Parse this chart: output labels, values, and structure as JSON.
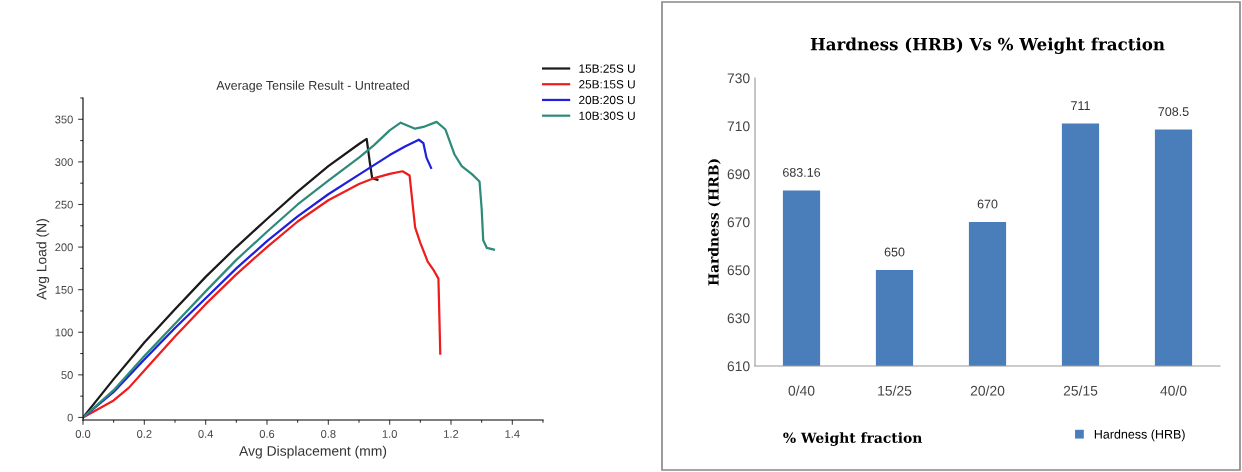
{
  "chart_data": [
    {
      "type": "line",
      "title": "Average Tensile Result - Untreated",
      "xlabel": "Avg Displacement (mm)",
      "ylabel": "Avg Load (N)",
      "xlim": [
        0,
        1.5
      ],
      "xticks": [
        {
          "value": 0,
          "label": "0.0"
        },
        0.2,
        0.4,
        0.6,
        0.8,
        {
          "value": 1,
          "label": "1.0"
        },
        1.2,
        1.4
      ],
      "ylim": [
        -3,
        375
      ],
      "yticks": [
        0,
        50,
        100,
        150,
        200,
        250,
        300,
        350
      ],
      "grid": false,
      "legend": "top right",
      "series": [
        {
          "name": "15B:25S U",
          "color": "#1a1a1a",
          "x": [
            0,
            0.1,
            0.2,
            0.3,
            0.4,
            0.5,
            0.6,
            0.7,
            0.8,
            0.9,
            0.925,
            0.935,
            0.943,
            0.96
          ],
          "values": [
            0,
            45,
            88,
            127,
            165,
            200,
            233,
            265,
            295,
            321,
            327,
            300,
            281,
            279
          ]
        },
        {
          "name": "25B:15S U",
          "color": "#ee1c1c",
          "x": [
            0,
            0.1,
            0.15,
            0.2,
            0.3,
            0.4,
            0.5,
            0.6,
            0.7,
            0.8,
            0.9,
            0.95,
            1.0,
            1.042,
            1.065,
            1.075,
            1.083,
            1.1,
            1.124,
            1.145,
            1.159,
            1.162,
            1.165
          ],
          "values": [
            0,
            20,
            35,
            55,
            95,
            133,
            168,
            200,
            230,
            255,
            274,
            281,
            286,
            289,
            284,
            250,
            223,
            205,
            183,
            172,
            163,
            120,
            75
          ]
        },
        {
          "name": "20B:20S U",
          "color": "#1f1fdd",
          "x": [
            0,
            0.1,
            0.2,
            0.3,
            0.4,
            0.5,
            0.6,
            0.7,
            0.8,
            0.9,
            1.0,
            1.05,
            1.095,
            1.11,
            1.12,
            1.135
          ],
          "values": [
            0,
            30,
            68,
            105,
            140,
            175,
            207,
            236,
            262,
            285,
            308,
            318,
            326,
            322,
            305,
            293
          ]
        },
        {
          "name": "10B:30S U",
          "color": "#2e8b7a",
          "x": [
            0,
            0.1,
            0.2,
            0.3,
            0.4,
            0.5,
            0.6,
            0.7,
            0.8,
            0.9,
            0.95,
            1.0,
            1.036,
            1.083,
            1.11,
            1.153,
            1.182,
            1.211,
            1.235,
            1.27,
            1.293,
            1.3,
            1.305,
            1.317,
            1.34
          ],
          "values": [
            0,
            32,
            72,
            110,
            148,
            185,
            218,
            250,
            278,
            305,
            320,
            337,
            346,
            339,
            341,
            347,
            338,
            309,
            295,
            285,
            277,
            245,
            208,
            199,
            197
          ]
        }
      ]
    },
    {
      "type": "bar",
      "title": "Hardness (HRB) Vs % Weight fraction",
      "xlabel": "% Weight fraction",
      "ylabel": "Hardness (HRB)",
      "categories": [
        "0/40",
        "15/25",
        "20/20",
        "25/15",
        "40/0"
      ],
      "ylim": [
        610,
        730
      ],
      "yticks": [
        610,
        630,
        650,
        670,
        690,
        710,
        730
      ],
      "grid": false,
      "legend": "bottom right",
      "data_labels": true,
      "series": [
        {
          "name": "Hardness (HRB)",
          "color": "#4a7ebb",
          "values": [
            683.16,
            650,
            670,
            711,
            708.5
          ]
        }
      ]
    }
  ]
}
